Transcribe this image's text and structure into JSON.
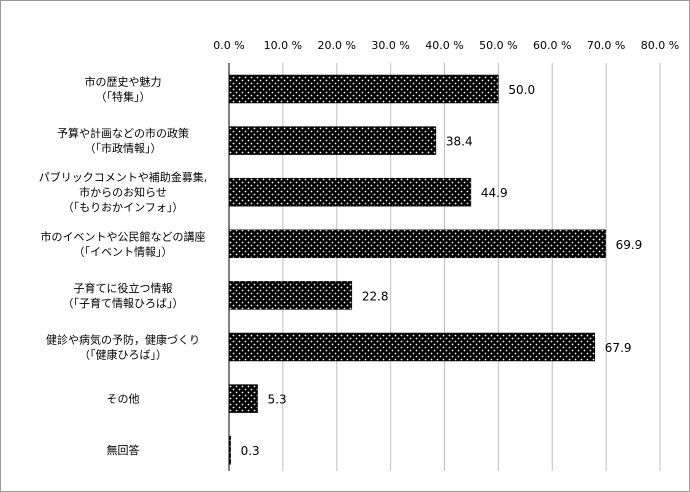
{
  "chart_data": {
    "type": "bar",
    "orientation": "horizontal",
    "categories": [
      [
        "市の歴史や魅力",
        "（「特集」）"
      ],
      [
        "予算や計画などの市の政策",
        "（「市政情報」）"
      ],
      [
        "パブリックコメントや補助金募集,",
        "市からのお知らせ",
        "（「もりおかインフォ」）"
      ],
      [
        "市のイベントや公民館などの講座",
        "（「イベント情報」）"
      ],
      [
        "子育てに役立つ情報",
        "（「子育て情報ひろば」）"
      ],
      [
        "健診や病気の予防，健康づくり",
        "（「健康ひろば」）"
      ],
      [
        "その他"
      ],
      [
        "無回答"
      ]
    ],
    "values": [
      50.0,
      38.4,
      44.9,
      69.9,
      22.8,
      67.9,
      5.3,
      0.3
    ],
    "value_labels": [
      "50.0",
      "38.4",
      "44.9",
      "69.9",
      "22.8",
      "67.9",
      "5.3",
      "0.3"
    ],
    "xlim": [
      0,
      80
    ],
    "ticks": [
      0,
      10,
      20,
      30,
      40,
      50,
      60,
      70,
      80
    ],
    "tick_labels": [
      "0.0 %",
      "10.0 %",
      "20.0 %",
      "30.0 %",
      "40.0 %",
      "50.0 %",
      "60.0 %",
      "70.0 %",
      "80.0 %"
    ],
    "x_axis_position": "top",
    "grid": true,
    "bar_fill": "black with white dots",
    "colors": {
      "bar": "#000000",
      "dot": "#ffffff",
      "grid": "#bfbfbf"
    }
  }
}
